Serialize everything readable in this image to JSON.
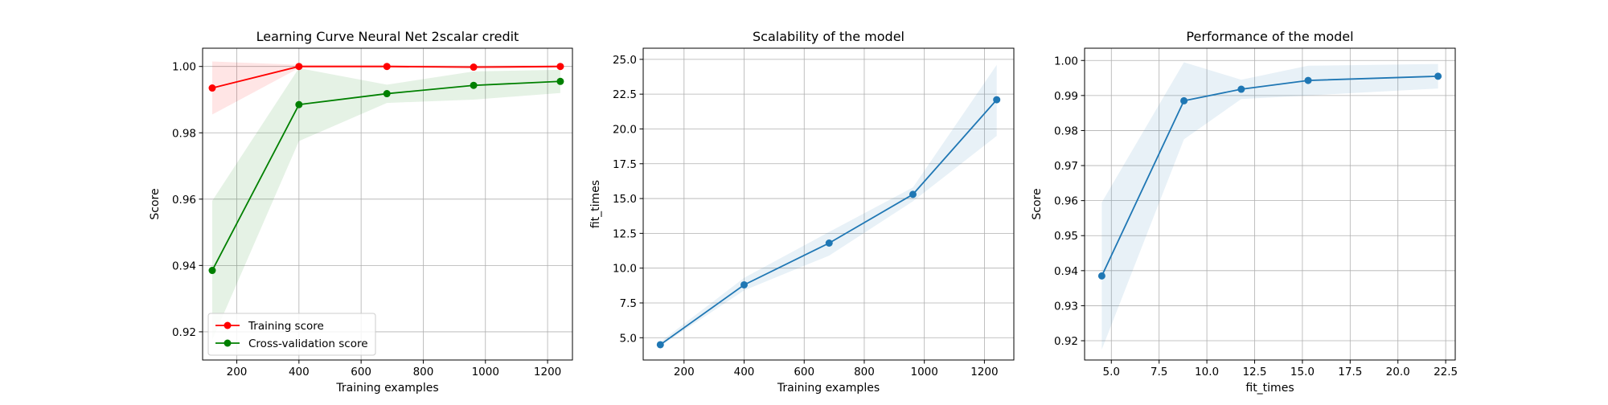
{
  "chart_data": [
    {
      "type": "line",
      "title": "Learning Curve Neural Net 2scalar credit",
      "xlabel": "Training examples",
      "ylabel": "Score",
      "xlim": [
        90,
        1280
      ],
      "ylim": [
        0.9115,
        1.0055
      ],
      "xticks": [
        200,
        400,
        600,
        800,
        1000,
        1200
      ],
      "yticks": [
        0.92,
        0.94,
        0.96,
        0.98,
        1.0
      ],
      "ytick_decimals": 2,
      "grid": true,
      "legend": "lower-left",
      "x": [
        121,
        400,
        683,
        962,
        1241
      ],
      "series": [
        {
          "name": "Training score",
          "color": "#ff0000",
          "values": [
            0.9935,
            1.0,
            1.0,
            0.9998,
            1.0
          ],
          "lower": [
            0.9855,
            0.9995,
            0.9995,
            0.9993,
            0.9995
          ],
          "upper": [
            1.0015,
            1.0005,
            1.0005,
            1.0003,
            1.0005
          ]
        },
        {
          "name": "Cross-validation score",
          "color": "#008000",
          "values": [
            0.9385,
            0.9885,
            0.9918,
            0.9943,
            0.9955
          ],
          "lower": [
            0.9175,
            0.9775,
            0.989,
            0.99,
            0.992
          ],
          "upper": [
            0.9595,
            0.9995,
            0.9945,
            0.9985,
            0.999
          ]
        }
      ]
    },
    {
      "type": "line",
      "title": "Scalability of the model",
      "xlabel": "Training examples",
      "ylabel": "fit_times",
      "xlim": [
        64,
        1298
      ],
      "ylim": [
        3.4,
        25.8
      ],
      "xticks": [
        200,
        400,
        600,
        800,
        1000,
        1200
      ],
      "yticks": [
        5.0,
        7.5,
        10.0,
        12.5,
        15.0,
        17.5,
        20.0,
        22.5,
        25.0
      ],
      "ytick_decimals": 1,
      "grid": true,
      "x": [
        121,
        400,
        683,
        962,
        1241
      ],
      "series": [
        {
          "name": "",
          "color": "#1f77b4",
          "values": [
            4.5,
            8.8,
            11.8,
            15.3,
            22.1
          ],
          "lower": [
            4.4,
            8.4,
            10.9,
            14.8,
            19.5
          ],
          "upper": [
            4.7,
            9.3,
            12.6,
            15.8,
            24.6
          ]
        }
      ]
    },
    {
      "type": "line",
      "title": "Performance of the model",
      "xlabel": "fit_times",
      "ylabel": "Score",
      "xlim": [
        3.6,
        23.0
      ],
      "ylim": [
        0.9145,
        1.0035
      ],
      "xticks": [
        5.0,
        7.5,
        10.0,
        12.5,
        15.0,
        17.5,
        20.0,
        22.5
      ],
      "yticks": [
        0.92,
        0.93,
        0.94,
        0.95,
        0.96,
        0.97,
        0.98,
        0.99,
        1.0
      ],
      "xtick_decimals": 1,
      "ytick_decimals": 2,
      "grid": true,
      "x": [
        4.5,
        8.8,
        11.8,
        15.3,
        22.1
      ],
      "series": [
        {
          "name": "",
          "color": "#1f77b4",
          "values": [
            0.9385,
            0.9885,
            0.9918,
            0.9943,
            0.9955
          ],
          "lower": [
            0.9175,
            0.9775,
            0.989,
            0.99,
            0.992
          ],
          "upper": [
            0.9595,
            0.9995,
            0.9945,
            0.9985,
            0.999
          ]
        }
      ]
    }
  ]
}
